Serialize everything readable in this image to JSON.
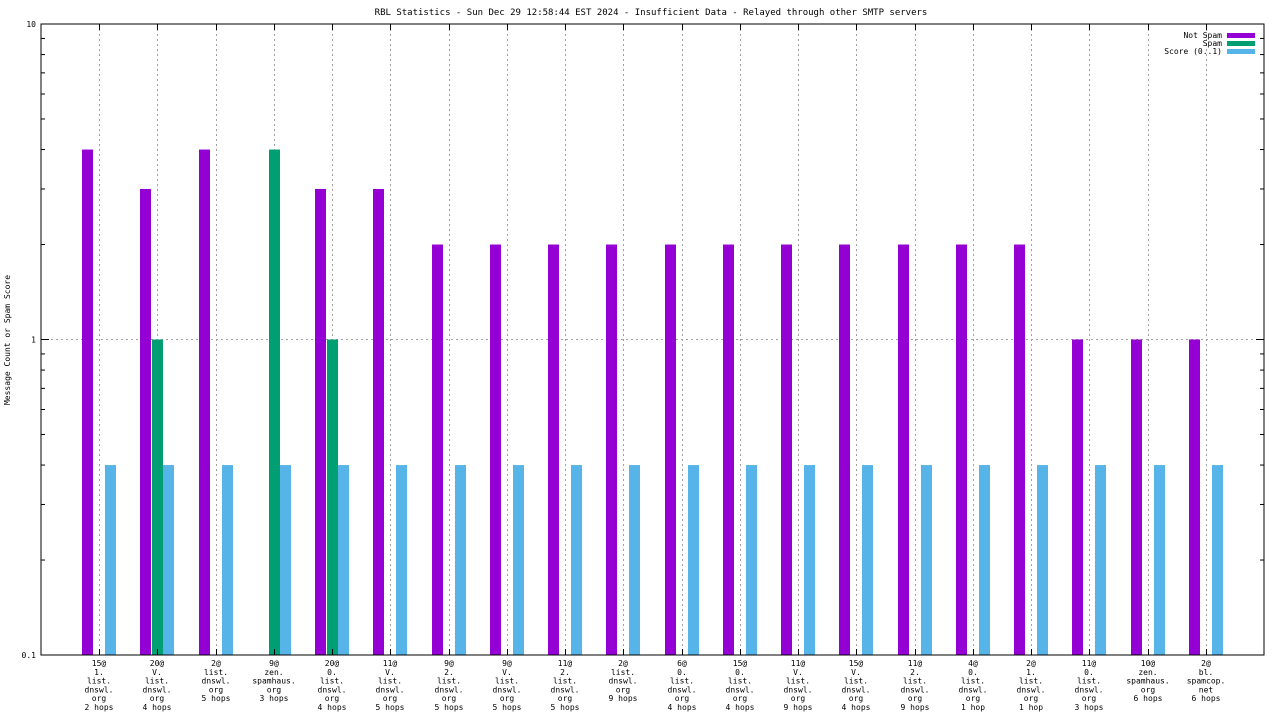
{
  "chart_data": {
    "type": "bar",
    "title": "RBL Statistics - Sun Dec 29 12:58:44 EST 2024 - Insufficient Data - Relayed through other SMTP servers",
    "xlabel": "",
    "ylabel": "Message Count or Spam Score",
    "yscale": "log",
    "ylim": [
      0.1,
      10
    ],
    "yticks": [
      {
        "value": 0.1,
        "label": "0.1"
      },
      {
        "value": 1,
        "label": "1"
      },
      {
        "value": 10,
        "label": "10"
      }
    ],
    "grid": true,
    "legend_position": "top-right",
    "categories": [
      [
        "15@",
        "1.",
        "list.",
        "dnswl.",
        "org",
        "2 hops"
      ],
      [
        "20@",
        "V.",
        "list.",
        "dnswl.",
        "org",
        "4 hops"
      ],
      [
        "2@",
        "list.",
        "dnswl.",
        "org",
        "5 hops"
      ],
      [
        "9@",
        "zen.",
        "spamhaus.",
        "org",
        "3 hops"
      ],
      [
        "20@",
        "0.",
        "list.",
        "dnswl.",
        "org",
        "4 hops"
      ],
      [
        "11@",
        "V.",
        "list.",
        "dnswl.",
        "org",
        "5 hops"
      ],
      [
        "9@",
        "2.",
        "list.",
        "dnswl.",
        "org",
        "5 hops"
      ],
      [
        "9@",
        "V.",
        "list.",
        "dnswl.",
        "org",
        "5 hops"
      ],
      [
        "11@",
        "2.",
        "list.",
        "dnswl.",
        "org",
        "5 hops"
      ],
      [
        "2@",
        "list.",
        "dnswl.",
        "org",
        "9 hops"
      ],
      [
        "6@",
        "0.",
        "list.",
        "dnswl.",
        "org",
        "4 hops"
      ],
      [
        "15@",
        "0.",
        "list.",
        "dnswl.",
        "org",
        "4 hops"
      ],
      [
        "11@",
        "V.",
        "list.",
        "dnswl.",
        "org",
        "9 hops"
      ],
      [
        "15@",
        "V.",
        "list.",
        "dnswl.",
        "org",
        "4 hops"
      ],
      [
        "11@",
        "2.",
        "list.",
        "dnswl.",
        "org",
        "9 hops"
      ],
      [
        "4@",
        "0.",
        "list.",
        "dnswl.",
        "org",
        "1 hop"
      ],
      [
        "2@",
        "1.",
        "list.",
        "dnswl.",
        "org",
        "1 hop"
      ],
      [
        "11@",
        "0.",
        "list.",
        "dnswl.",
        "org",
        "3 hops"
      ],
      [
        "10@",
        "zen.",
        "spamhaus.",
        "org",
        "6 hops"
      ],
      [
        "2@",
        "bl.",
        "spamcop.",
        "net",
        "6 hops"
      ]
    ],
    "series": [
      {
        "name": "Not Spam",
        "color": "#9400d3",
        "values": [
          4,
          3,
          4,
          0,
          3,
          3,
          2,
          2,
          2,
          2,
          2,
          2,
          2,
          2,
          2,
          2,
          2,
          1,
          1,
          1
        ]
      },
      {
        "name": "Spam",
        "color": "#009e73",
        "values": [
          0,
          1,
          0,
          4,
          1,
          0,
          0,
          0,
          0,
          0,
          0,
          0,
          0,
          0,
          0,
          0,
          0,
          0,
          0,
          0
        ]
      },
      {
        "name": "Score (0..1)",
        "color": "#56b4e9",
        "values": [
          0.4,
          0.4,
          0.4,
          0.4,
          0.4,
          0.4,
          0.4,
          0.4,
          0.4,
          0.4,
          0.4,
          0.4,
          0.4,
          0.4,
          0.4,
          0.4,
          0.4,
          0.4,
          0.4,
          0.4
        ]
      }
    ]
  }
}
